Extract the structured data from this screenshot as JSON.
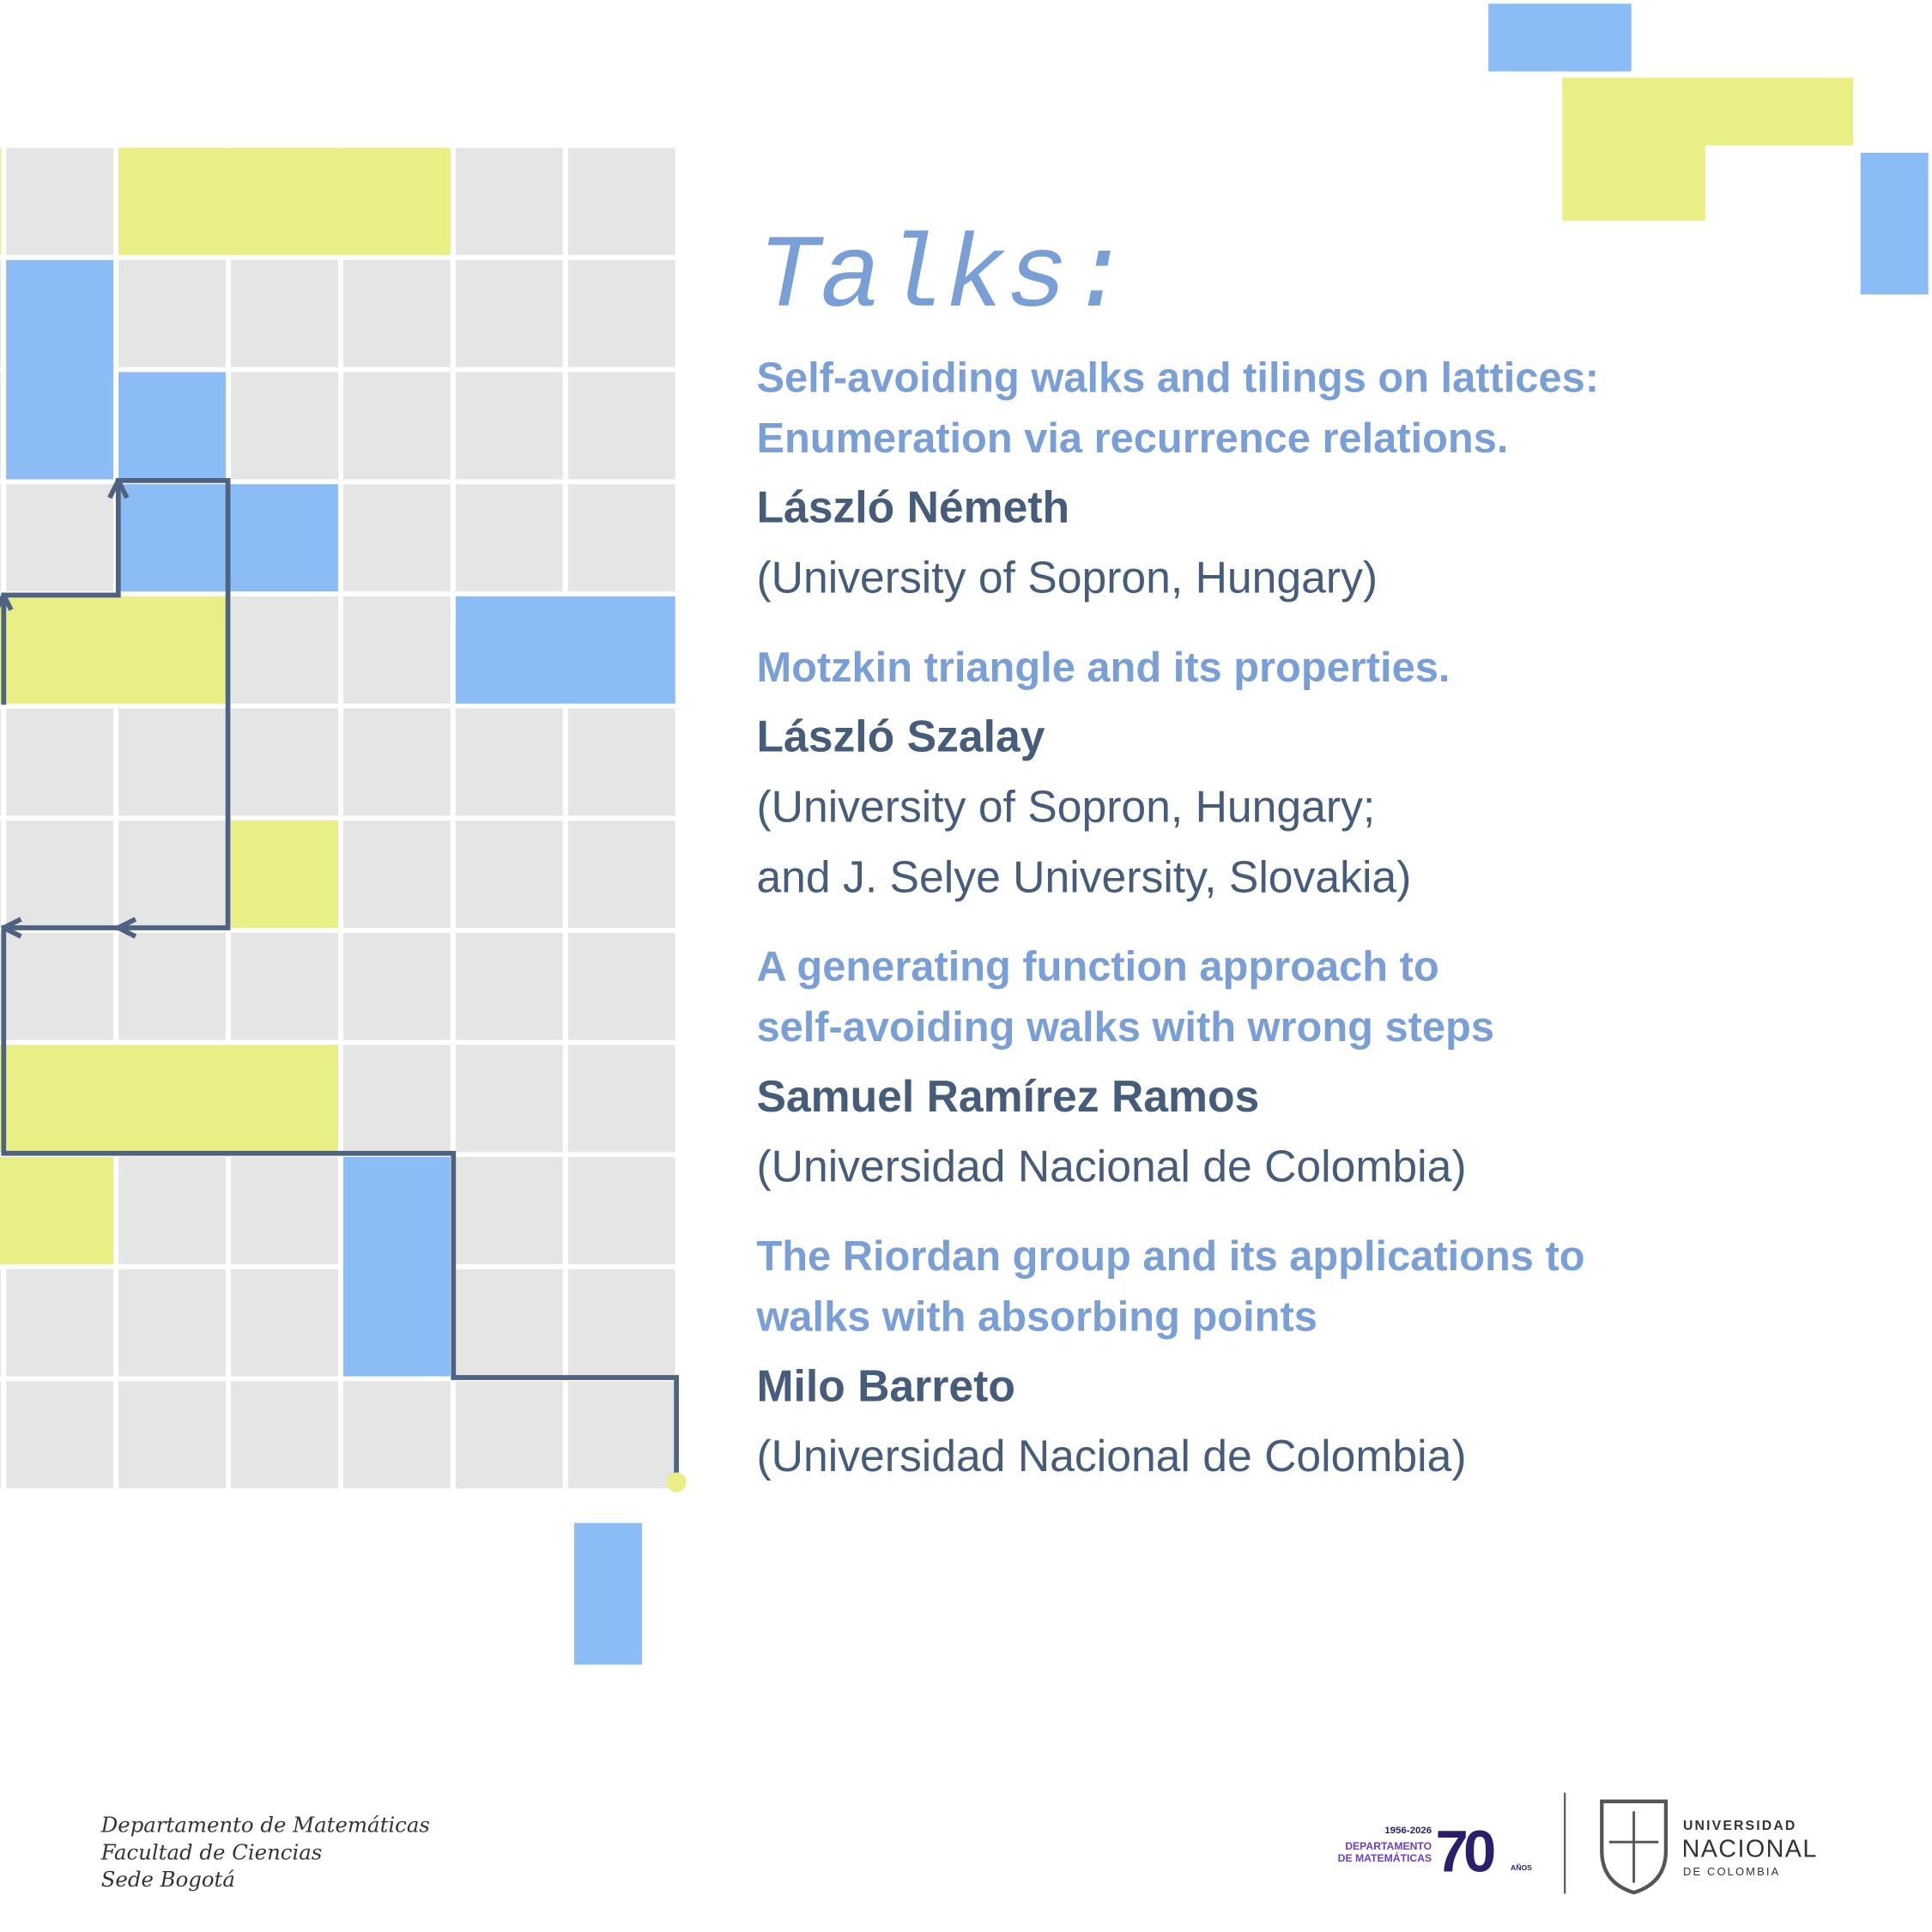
{
  "title": "Talks:",
  "talks": [
    {
      "title": [
        "Self-avoiding walks and tilings on lattices:",
        "Enumeration via recurrence relations."
      ],
      "speaker": "László Németh",
      "affiliation": [
        "(University of Sopron, Hungary)"
      ]
    },
    {
      "title": [
        "Motzkin triangle and its properties."
      ],
      "speaker": "László Szalay",
      "affiliation": [
        "(University of Sopron, Hungary;",
        "and J. Selye University, Slovakia)"
      ]
    },
    {
      "title": [
        "A generating function approach to",
        "self-avoiding walks with wrong steps"
      ],
      "speaker": "Samuel Ramírez Ramos",
      "affiliation": [
        "(Universidad Nacional de Colombia)"
      ]
    },
    {
      "title": [
        "The Riordan group and its applications to",
        "walks with absorbing points"
      ],
      "speaker": "Milo Barreto",
      "affiliation": [
        "(Universidad Nacional de Colombia)"
      ]
    }
  ],
  "footer": {
    "lines": [
      "Departamento de Matemáticas",
      "Facultad de Ciencias",
      "Sede Bogotá"
    ],
    "anniversary": {
      "years": "1956-2026",
      "dept": [
        "DEPARTAMENTO",
        "DE MATEMÁTICAS"
      ],
      "number": "70",
      "suffix": "AÑOS"
    },
    "university": {
      "top": "UNIVERSIDAD",
      "main": "NACIONAL",
      "bottom": "DE COLOMBIA"
    }
  }
}
